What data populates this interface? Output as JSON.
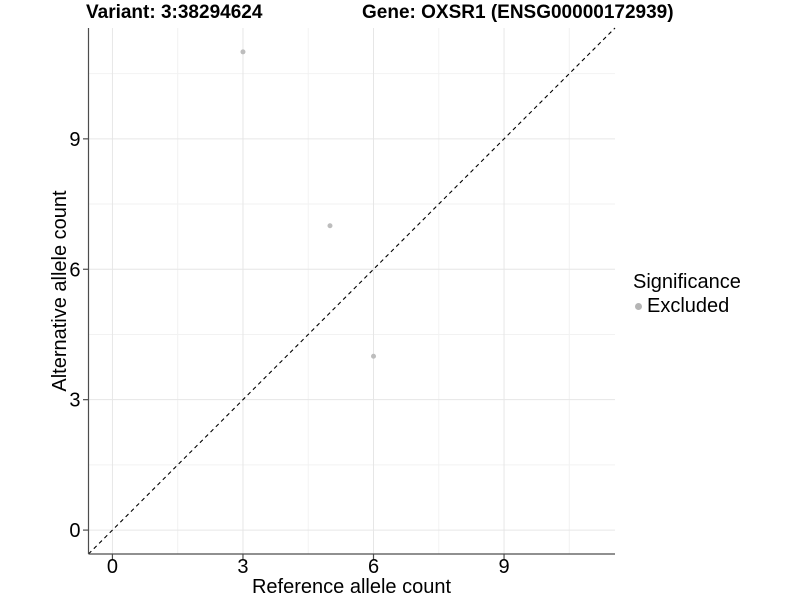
{
  "chart_data": {
    "type": "scatter",
    "title_left": "Variant: 3:38294624",
    "title_right": "Gene: OXSR1 (ENSG00000172939)",
    "xlabel": "Reference allele count",
    "ylabel": "Alternative allele count",
    "xlim": [
      -0.55,
      11.55
    ],
    "ylim": [
      -0.55,
      11.55
    ],
    "x_ticks": [
      0,
      3,
      6,
      9
    ],
    "y_ticks": [
      0,
      3,
      6,
      9
    ],
    "x_minor_ticks": [
      1.5,
      4.5,
      7.5,
      10.5
    ],
    "y_minor_ticks": [
      1.5,
      4.5,
      7.5,
      10.5
    ],
    "grid": true,
    "reference_line": {
      "type": "identity",
      "style": "dashed",
      "color": "#000000"
    },
    "series": [
      {
        "name": "Excluded",
        "color": "#bdbdbd",
        "points": [
          {
            "x": 3,
            "y": 11
          },
          {
            "x": 5,
            "y": 7
          },
          {
            "x": 6,
            "y": 4
          }
        ]
      }
    ],
    "legend": {
      "position": "right",
      "title": "Significance",
      "items": [
        {
          "label": "Excluded",
          "color": "#b5b5b5"
        }
      ]
    }
  },
  "style": {
    "axis_color": "#4d4d4d",
    "tick_label_color": "#000000",
    "grid_major_color": "#e6e6e6",
    "grid_minor_color": "#f2f2f2",
    "point_radius": 2.5,
    "tick_font_size": 20
  }
}
